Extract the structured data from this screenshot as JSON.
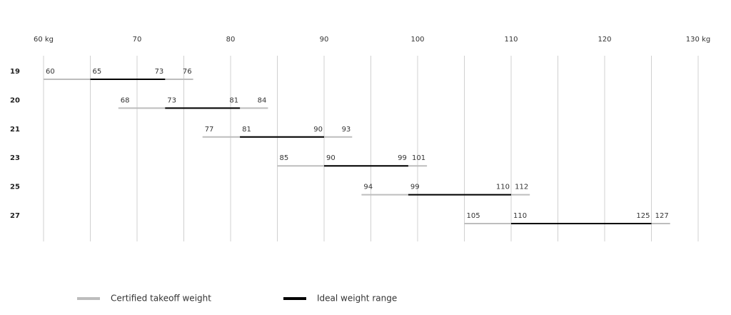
{
  "chart_data": {
    "type": "range",
    "categories": [
      "19",
      "20",
      "21",
      "23",
      "25",
      "27"
    ],
    "series": [
      {
        "name": "Certified takeoff weight",
        "color": "#bdbdbd",
        "low": [
          60,
          68,
          77,
          85,
          94,
          105
        ],
        "high": [
          76,
          84,
          93,
          101,
          112,
          127
        ]
      },
      {
        "name": "Ideal weight range",
        "color": "#000000",
        "low": [
          65,
          73,
          81,
          90,
          99,
          110
        ],
        "high": [
          73,
          81,
          90,
          99,
          110,
          125
        ]
      }
    ],
    "xlim": [
      60,
      130
    ],
    "xticks": [
      {
        "value": 60,
        "label": "60 kg"
      },
      70,
      80,
      90,
      100,
      110,
      120,
      {
        "value": 130,
        "label": "130 kg"
      }
    ],
    "minor_xticks": [
      65,
      75,
      85,
      95,
      105,
      115,
      125
    ],
    "grid": true,
    "legend": "bottom"
  }
}
